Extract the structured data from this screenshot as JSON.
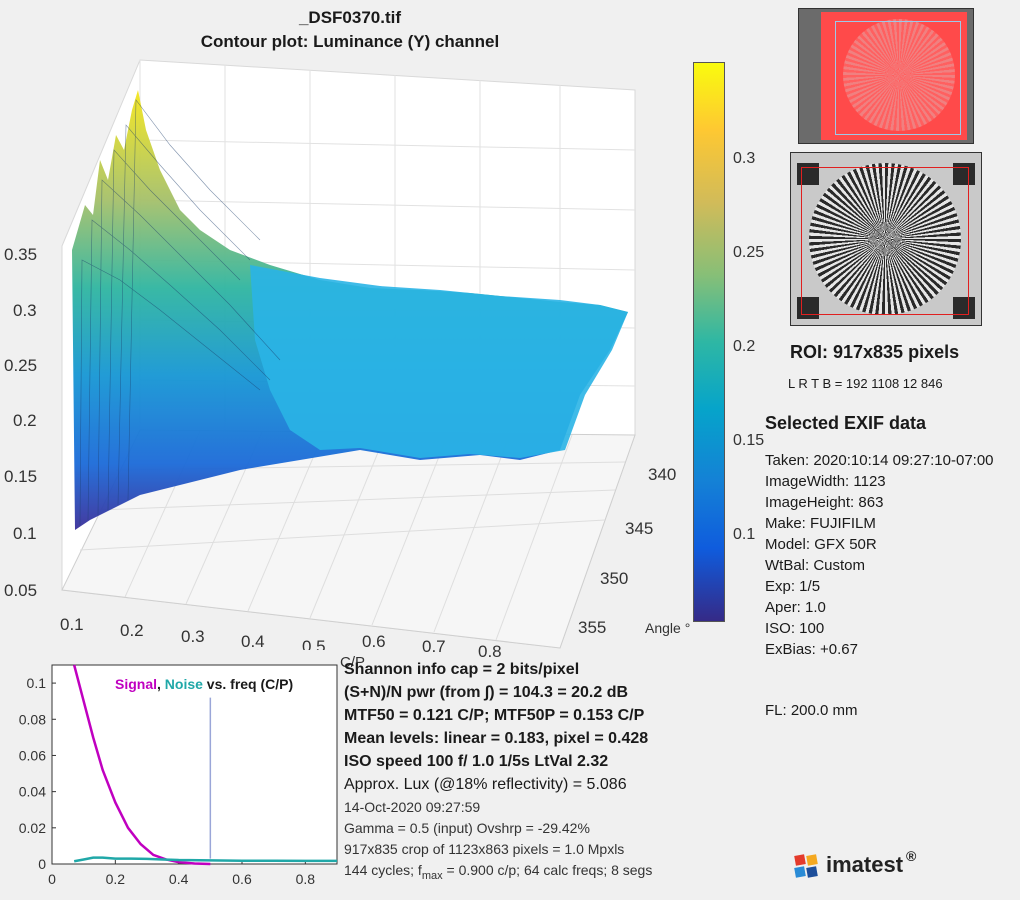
{
  "header": {
    "filename": "_DSF0370.tif",
    "subtitle": "Contour plot:  Luminance (Y) channel"
  },
  "surface_plot": {
    "z_ticks": [
      "0.35",
      "0.3",
      "0.25",
      "0.2",
      "0.15",
      "0.1",
      "0.05"
    ],
    "x_ticks": [
      "0.1",
      "0.2",
      "0.3",
      "0.4",
      "0.5",
      "0.6",
      "0.7",
      "0.8"
    ],
    "x_label": "C/P",
    "y_ticks": [
      "340",
      "345",
      "350",
      "355"
    ],
    "y_label": "Angle °",
    "colormap": [
      "#352a87",
      "#0f5cdd",
      "#1481d6",
      "#06a4ca",
      "#2eb7a4",
      "#87bf77",
      "#d1bb59",
      "#fec832",
      "#f9fb0e"
    ]
  },
  "colorbar": {
    "ticks": [
      "0.3",
      "0.25",
      "0.2",
      "0.15",
      "0.1"
    ]
  },
  "roi": {
    "title": "ROI:  917x835 pixels",
    "lrtb": "L R  T B = 192 1108  12 846"
  },
  "exif": {
    "heading": "Selected EXIF data",
    "lines": [
      "Taken: 2020:10:14 09:27:10-07:00",
      "ImageWidth:  1123",
      "ImageHeight:  863",
      "Make:  FUJIFILM",
      "Model: GFX 50R",
      "WtBal:  Custom",
      "Exp:   1/5",
      "Aper:  1.0",
      "ISO:   100",
      "ExBias:  +0.67"
    ],
    "fl": "FL:   200.0 mm"
  },
  "stats": {
    "bold_lines": [
      "Shannon info cap =  2 bits/pixel",
      "(S+N)/N pwr (from ∫) = 104.3 = 20.2 dB",
      "MTF50 = 0.121 C/P;  MTF50P = 0.153 C/P",
      "Mean levels:  linear = 0.183,  pixel = 0.428",
      "ISO speed  100   f/ 1.0    1/5s   LtVal 2.32"
    ],
    "lux": "Approx. Lux (@18% reflectivity) = 5.086",
    "date": "14-Oct-2020 09:27:59",
    "gamma": "Gamma = 0.5 (input)  Ovshrp = -29.42%",
    "crop": "917x835 crop of 1123x863 pixels = 1.0 Mpxls",
    "cycles_a": "144 cycles; f",
    "cycles_sub": "max",
    "cycles_b": " = 0.900 c/p;  64 calc freqs;  8 segs"
  },
  "logo": {
    "text": "imatest",
    "mark": "®"
  },
  "chart_data": {
    "type": "line",
    "title": "",
    "legend": [
      {
        "text": "Signal",
        "color": "#c000c0"
      },
      {
        "text": ", ",
        "color": "#1a1a1a"
      },
      {
        "text": "Noise",
        "color": "#20a8a8"
      },
      {
        "text": " vs. freq (C/P)",
        "color": "#1a1a1a"
      }
    ],
    "xlim": [
      0,
      0.9
    ],
    "ylim": [
      0,
      0.11
    ],
    "x_ticks": [
      "0",
      "0.2",
      "0.4",
      "0.6",
      "0.8"
    ],
    "y_ticks": [
      "0",
      "0.02",
      "0.04",
      "0.06",
      "0.08",
      "0.1"
    ],
    "series": [
      {
        "name": "Signal",
        "color": "#c000c0",
        "x": [
          0.07,
          0.1,
          0.13,
          0.16,
          0.2,
          0.24,
          0.28,
          0.32,
          0.36,
          0.4,
          0.45,
          0.5
        ],
        "y": [
          0.11,
          0.09,
          0.07,
          0.052,
          0.034,
          0.02,
          0.011,
          0.005,
          0.0025,
          0.001,
          0.0003,
          0.0
        ]
      },
      {
        "name": "Noise",
        "color": "#20a8a8",
        "x": [
          0.07,
          0.1,
          0.13,
          0.16,
          0.2,
          0.25,
          0.3,
          0.35,
          0.4,
          0.5,
          0.6,
          0.7,
          0.8,
          0.9
        ],
        "y": [
          0.0015,
          0.0025,
          0.0035,
          0.0035,
          0.003,
          0.003,
          0.0028,
          0.0025,
          0.0022,
          0.002,
          0.0018,
          0.0018,
          0.0017,
          0.0017
        ]
      }
    ],
    "vline_x": 0.5
  }
}
